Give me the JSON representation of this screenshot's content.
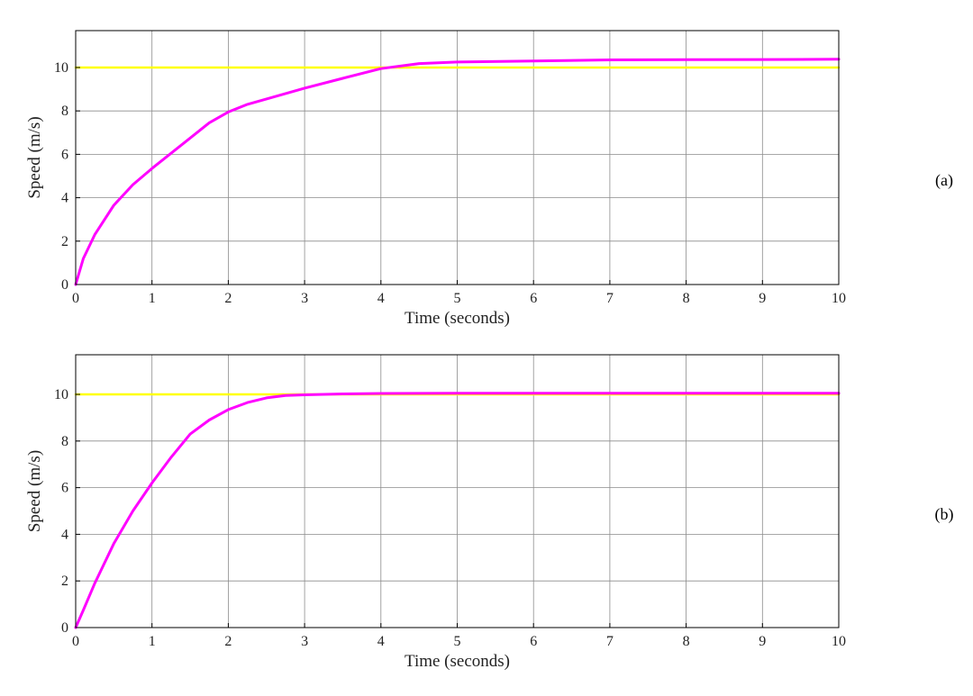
{
  "colors": {
    "reference": "#ffff00",
    "response": "#ff00ff",
    "grid": "#8c8c8c"
  },
  "chart_data": [
    {
      "type": "line",
      "panel_label": "(a)",
      "xlabel": "Time (seconds)",
      "ylabel": "Speed (m/s)",
      "xlim": [
        0,
        10
      ],
      "ylim": [
        0,
        11.7
      ],
      "xticks": [
        0,
        1,
        2,
        3,
        4,
        5,
        6,
        7,
        8,
        9,
        10
      ],
      "yticks": [
        0,
        2,
        4,
        6,
        8,
        10
      ],
      "grid": true,
      "series": [
        {
          "color": "#ffff00",
          "x": [
            0,
            10
          ],
          "y": [
            10,
            10
          ]
        },
        {
          "color": "#ff00ff",
          "x": [
            0,
            0.1,
            0.25,
            0.5,
            0.75,
            1,
            1.25,
            1.5,
            1.75,
            2,
            2.25,
            2.5,
            3,
            3.5,
            4,
            4.5,
            5,
            6,
            7,
            8,
            9,
            10
          ],
          "y": [
            0,
            1.2,
            2.3,
            3.65,
            4.6,
            5.35,
            6.05,
            6.75,
            7.45,
            7.95,
            8.3,
            8.55,
            9.05,
            9.5,
            9.95,
            10.18,
            10.25,
            10.3,
            10.35,
            10.36,
            10.37,
            10.38
          ]
        }
      ]
    },
    {
      "type": "line",
      "panel_label": "(b)",
      "xlabel": "Time (seconds)",
      "ylabel": "Speed (m/s)",
      "xlim": [
        0,
        10
      ],
      "ylim": [
        0,
        11.7
      ],
      "xticks": [
        0,
        1,
        2,
        3,
        4,
        5,
        6,
        7,
        8,
        9,
        10
      ],
      "yticks": [
        0,
        2,
        4,
        6,
        8,
        10
      ],
      "grid": true,
      "series": [
        {
          "color": "#ffff00",
          "x": [
            0,
            10
          ],
          "y": [
            10,
            10
          ]
        },
        {
          "color": "#ff00ff",
          "x": [
            0,
            0.1,
            0.25,
            0.5,
            0.75,
            1,
            1.25,
            1.5,
            1.75,
            2,
            2.25,
            2.5,
            2.75,
            3,
            3.5,
            4,
            5,
            6,
            7,
            8,
            9,
            10
          ],
          "y": [
            0,
            0.75,
            1.9,
            3.6,
            5.0,
            6.2,
            7.3,
            8.3,
            8.9,
            9.35,
            9.65,
            9.85,
            9.95,
            9.98,
            10.02,
            10.04,
            10.05,
            10.05,
            10.05,
            10.05,
            10.05,
            10.05
          ]
        }
      ]
    }
  ]
}
